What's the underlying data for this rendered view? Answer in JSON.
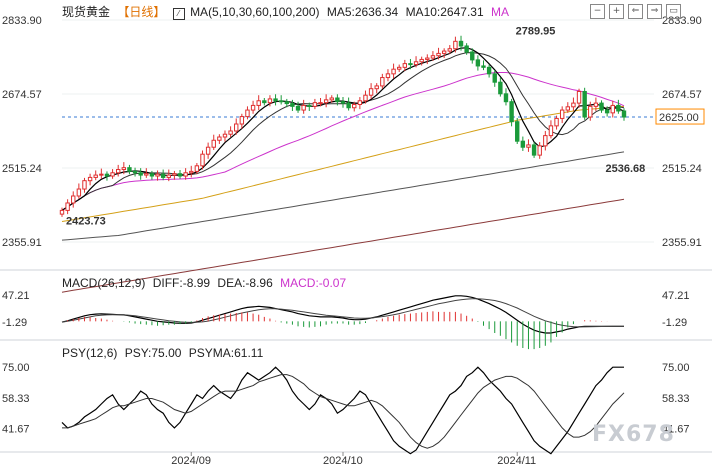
{
  "header": {
    "title": "现货黄金",
    "period": "【日线】",
    "ma_text": "MA(5,10,30,60,100,200)",
    "ma5": "MA5:2636.34",
    "ma10": "MA10:2647.31",
    "ma_tail": "MA"
  },
  "macd_header": {
    "label": "MACD(26,12,9)",
    "diff": "DIFF:-8.99",
    "dea": "DEA:-8.96",
    "macd": "MACD:-0.07"
  },
  "psy_header": {
    "label": "PSY(12,6)",
    "psy": "PSY:75.00",
    "psyma": "PSYMA:61.11"
  },
  "toolbar": [
    "−",
    "+",
    "⇐",
    "⇒",
    "▭"
  ],
  "watermark": "FX678",
  "colors": {
    "up": "#e03030",
    "down": "#1a9a3a",
    "ma5": "#000000",
    "ma10": "#333333",
    "ma30": "#cc33cc",
    "ma60": "#d4a017",
    "ma100": "#555555",
    "ma200": "#8b3a3a",
    "price_tag": "#ff8a00"
  },
  "chart_data": [
    {
      "type": "candlestick",
      "title": "现货黄金 【日线】",
      "y_ticks": [
        "2833.90",
        "2674.57",
        "2515.24",
        "2355.91"
      ],
      "ylim": [
        2300,
        2833.9
      ],
      "current_price": "2625.00",
      "annotations": [
        {
          "text": "2789.95",
          "x": 80,
          "y": 2789.95,
          "color": "#e03030"
        },
        {
          "text": "2536.68",
          "x": 96,
          "y": 2536.68,
          "color": "#1a9a3a"
        },
        {
          "text": "2423.73",
          "x": 0,
          "y": 2423.73,
          "color": "#1a9a3a"
        }
      ],
      "x_labels": [
        {
          "text": "2024/09",
          "index": 23
        },
        {
          "text": "2024/10",
          "index": 50
        },
        {
          "text": "2024/11",
          "index": 81
        }
      ],
      "closes": [
        2424,
        2440,
        2455,
        2470,
        2488,
        2495,
        2500,
        2502,
        2498,
        2505,
        2512,
        2516,
        2508,
        2505,
        2500,
        2503,
        2498,
        2502,
        2495,
        2500,
        2503,
        2498,
        2505,
        2508,
        2520,
        2545,
        2560,
        2575,
        2582,
        2588,
        2595,
        2610,
        2626,
        2640,
        2650,
        2660,
        2656,
        2664,
        2660,
        2658,
        2654,
        2648,
        2640,
        2650,
        2648,
        2656,
        2656,
        2662,
        2666,
        2658,
        2655,
        2645,
        2652,
        2660,
        2672,
        2686,
        2692,
        2710,
        2718,
        2728,
        2732,
        2740,
        2738,
        2744,
        2749,
        2752,
        2757,
        2762,
        2767,
        2772,
        2788,
        2778,
        2765,
        2748,
        2735,
        2732,
        2718,
        2700,
        2675,
        2658,
        2615,
        2573,
        2560,
        2565,
        2543,
        2563,
        2585,
        2606,
        2622,
        2640,
        2647,
        2655,
        2680,
        2625,
        2648,
        2655,
        2640,
        2634,
        2650,
        2638,
        2625
      ],
      "ma_lines": {
        "ma60": [
          2400,
          2402,
          2404,
          2406,
          2408,
          2410,
          2412,
          2414,
          2416,
          2418,
          2420,
          2422,
          2424,
          2426,
          2428,
          2430,
          2432,
          2434,
          2436,
          2438,
          2440,
          2442,
          2444,
          2446,
          2448,
          2450,
          2453,
          2456,
          2459,
          2462,
          2465,
          2468,
          2471,
          2474,
          2477,
          2480,
          2483,
          2486,
          2489,
          2492,
          2495,
          2498,
          2501,
          2504,
          2507,
          2510,
          2513,
          2516,
          2519,
          2522,
          2525,
          2528,
          2531,
          2534,
          2537,
          2540,
          2543,
          2546,
          2549,
          2552,
          2555,
          2558,
          2561,
          2564,
          2567,
          2570,
          2573,
          2576,
          2579,
          2582,
          2585,
          2588,
          2591,
          2594,
          2597,
          2600,
          2603,
          2606,
          2609,
          2612,
          2615,
          2618,
          2620,
          2622,
          2624,
          2626,
          2628,
          2630,
          2632,
          2634,
          2636,
          2638,
          2640,
          2641,
          2642,
          2643,
          2644,
          2645,
          2646,
          2647,
          2648
        ],
        "ma100": [
          2360,
          2361,
          2362,
          2363,
          2364,
          2365,
          2366,
          2367,
          2368,
          2369,
          2370,
          2372,
          2374,
          2376,
          2378,
          2380,
          2382,
          2384,
          2386,
          2388,
          2390,
          2392,
          2394,
          2396,
          2398,
          2400,
          2402,
          2404,
          2406,
          2408,
          2410,
          2412,
          2414,
          2416,
          2418,
          2420,
          2422,
          2424,
          2426,
          2428,
          2430,
          2432,
          2434,
          2436,
          2438,
          2440,
          2442,
          2444,
          2446,
          2448,
          2450,
          2452,
          2454,
          2456,
          2458,
          2460,
          2462,
          2464,
          2466,
          2468,
          2470,
          2472,
          2474,
          2476,
          2478,
          2480,
          2482,
          2484,
          2486,
          2488,
          2490,
          2492,
          2494,
          2496,
          2498,
          2500,
          2502,
          2504,
          2506,
          2508,
          2510,
          2512,
          2514,
          2516,
          2518,
          2520,
          2522,
          2524,
          2526,
          2528,
          2530,
          2532,
          2534,
          2536,
          2538,
          2540,
          2542,
          2544,
          2546,
          2548,
          2550
        ],
        "ma200": [
          2248,
          2250,
          2252,
          2254,
          2256,
          2258,
          2260,
          2262,
          2264,
          2266,
          2268,
          2270,
          2272,
          2274,
          2276,
          2278,
          2280,
          2282,
          2284,
          2286,
          2288,
          2290,
          2292,
          2294,
          2296,
          2298,
          2300,
          2302,
          2304,
          2306,
          2308,
          2310,
          2312,
          2314,
          2316,
          2318,
          2320,
          2322,
          2324,
          2326,
          2328,
          2330,
          2332,
          2334,
          2336,
          2338,
          2340,
          2342,
          2344,
          2346,
          2348,
          2350,
          2352,
          2354,
          2356,
          2358,
          2360,
          2362,
          2364,
          2366,
          2368,
          2370,
          2372,
          2374,
          2376,
          2378,
          2380,
          2382,
          2384,
          2386,
          2388,
          2390,
          2392,
          2394,
          2396,
          2398,
          2400,
          2402,
          2404,
          2406,
          2408,
          2410,
          2412,
          2414,
          2416,
          2418,
          2420,
          2422,
          2424,
          2426,
          2428,
          2430,
          2432,
          2434,
          2436,
          2438,
          2440,
          2442,
          2444,
          2446,
          2448
        ]
      }
    },
    {
      "type": "macd",
      "y_ticks": [
        "47.21",
        "-1.29"
      ],
      "ylim": [
        -30,
        60
      ],
      "diff": [
        -1.29,
        1,
        4,
        7,
        10,
        12,
        13,
        13.5,
        13,
        12.5,
        12,
        11.5,
        10,
        8,
        6,
        4,
        2,
        0,
        -1,
        -2,
        -3,
        -3.5,
        -3.5,
        -3,
        -1,
        2,
        5,
        8,
        11,
        14,
        17,
        20,
        23,
        25,
        26,
        27,
        26,
        25,
        23,
        21,
        19,
        17,
        14,
        12,
        10,
        9,
        8,
        8,
        8,
        7,
        6,
        4,
        3,
        3,
        4,
        6,
        8,
        11,
        14,
        17,
        20,
        23,
        26,
        29,
        32,
        35,
        38,
        40,
        42,
        44,
        46,
        46,
        45,
        43,
        40,
        36,
        32,
        27,
        22,
        16,
        9,
        2,
        -5,
        -11,
        -16,
        -19,
        -21,
        -21,
        -19,
        -17,
        -14,
        -12,
        -10,
        -9,
        -9,
        -9,
        -9,
        -9,
        -9,
        -9,
        -8.99
      ],
      "dea": [
        -1.29,
        0,
        2,
        4,
        6,
        8,
        10,
        11,
        11.5,
        12,
        12,
        11.8,
        11,
        10,
        8.5,
        7,
        5.5,
        4,
        2.5,
        1,
        0,
        -1,
        -1.5,
        -2,
        -1.8,
        -1,
        0.5,
        2.5,
        5,
        7.5,
        10,
        12.5,
        15,
        17,
        19,
        21,
        22,
        22.5,
        22.5,
        22,
        21,
        20,
        18.5,
        17,
        15.5,
        14,
        12.5,
        11,
        10,
        9,
        8,
        7,
        6,
        5.5,
        5.5,
        6,
        7,
        8.5,
        10,
        12,
        14,
        16.5,
        19,
        21.5,
        24,
        26.5,
        29,
        31.5,
        33.5,
        35.5,
        37.5,
        39,
        40,
        40.5,
        40.5,
        40,
        39,
        37.5,
        35,
        32,
        28,
        24,
        19,
        14,
        9,
        5,
        1,
        -2,
        -5,
        -7,
        -8.5,
        -9.5,
        -10,
        -10,
        -9.8,
        -9.5,
        -9.3,
        -9.1,
        -9,
        -8.98,
        -8.96
      ]
    },
    {
      "type": "line",
      "title": "PSY(12,6)",
      "y_ticks": [
        "75.00",
        "58.33",
        "41.67"
      ],
      "ylim": [
        30,
        80
      ],
      "series": [
        {
          "name": "PSY",
          "values": [
            45,
            42,
            43,
            45,
            48,
            50,
            52,
            55,
            58,
            60,
            55,
            52,
            55,
            58,
            62,
            60,
            55,
            52,
            50,
            45,
            42,
            45,
            50,
            55,
            60,
            58,
            62,
            65,
            62,
            60,
            58,
            62,
            68,
            72,
            70,
            68,
            70,
            72,
            75,
            72,
            68,
            62,
            58,
            55,
            52,
            55,
            60,
            58,
            55,
            50,
            52,
            55,
            58,
            62,
            60,
            55,
            50,
            45,
            40,
            35,
            32,
            30,
            28,
            30,
            35,
            40,
            45,
            50,
            55,
            60,
            62,
            65,
            70,
            72,
            75,
            72,
            68,
            65,
            62,
            58,
            55,
            50,
            45,
            40,
            35,
            32,
            30,
            28,
            32,
            36,
            40,
            45,
            50,
            55,
            60,
            65,
            68,
            72,
            75,
            75,
            75
          ]
        },
        {
          "name": "PSYMA",
          "values": [
            42,
            42,
            43,
            44,
            45,
            46,
            47,
            49,
            51,
            53,
            54,
            54,
            55,
            56,
            57,
            58,
            58,
            57,
            56,
            54,
            52,
            51,
            50,
            51,
            53,
            55,
            57,
            59,
            61,
            62,
            62,
            62,
            63,
            64,
            65,
            67,
            68,
            69,
            70,
            71,
            71,
            70,
            68,
            66,
            63,
            61,
            59,
            58,
            57,
            56,
            55,
            54,
            54,
            55,
            56,
            57,
            56,
            54,
            51,
            48,
            45,
            41,
            37,
            34,
            32,
            31,
            32,
            34,
            37,
            41,
            45,
            49,
            53,
            57,
            61,
            64,
            66,
            68,
            69,
            70,
            70,
            69,
            67,
            65,
            62,
            58,
            54,
            50,
            46,
            42,
            39,
            37,
            37,
            38,
            40,
            43,
            47,
            51,
            55,
            58,
            61.11
          ]
        }
      ]
    }
  ]
}
